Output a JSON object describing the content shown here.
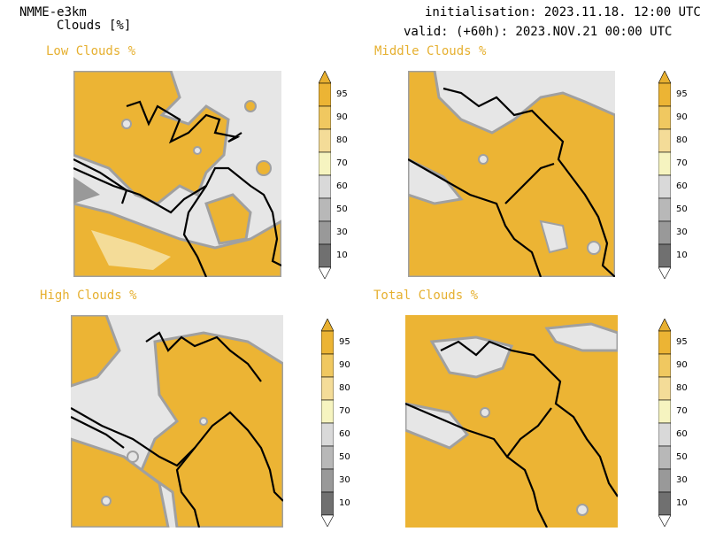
{
  "header": {
    "model": "NMME-e3km",
    "variable": "Clouds [%]",
    "init": "initialisation: 2023.11.18. 12:00 UTC",
    "valid": "valid: (+60h): 2023.NOV.21 00:00 UTC"
  },
  "panels": [
    {
      "title": "Low Clouds %"
    },
    {
      "title": "Middle Clouds %"
    },
    {
      "title": "High Clouds %"
    },
    {
      "title": "Total Clouds %"
    }
  ],
  "colorbar": {
    "labels": [
      "95",
      "90",
      "80",
      "70",
      "60",
      "50",
      "30",
      "10"
    ],
    "colors": {
      "top_arrow": "#e8b030",
      "c95": "#ecb434",
      "c90": "#f0c860",
      "c80": "#f4dc98",
      "c70": "#f6f4c0",
      "c60": "#d9d9d9",
      "c50": "#b8b8b8",
      "c30": "#999999",
      "c10": "#707070",
      "bottom_arrow": "#ffffff"
    }
  },
  "colors": {
    "cloud_orange": "#ecb434",
    "clear_gray": "#e6e6e6",
    "edge_gray": "#a0a0a0",
    "border_black": "#000000",
    "title_orange": "#e6b030"
  }
}
